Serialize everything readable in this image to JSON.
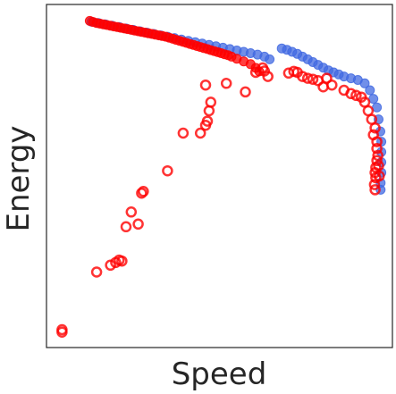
{
  "chart_data": {
    "type": "scatter",
    "xlabel": "Speed",
    "ylabel": "Energy",
    "xlim": [
      0,
      100
    ],
    "ylim": [
      0,
      100
    ],
    "grid": false,
    "ticks": false,
    "series": [
      {
        "color": "#4169E1",
        "marker": "filled-circle",
        "points": [
          [
            13.0,
            95.0
          ],
          [
            15.0,
            94.6
          ],
          [
            17.0,
            94.2
          ],
          [
            19.0,
            93.8
          ],
          [
            21.0,
            93.4
          ],
          [
            23.0,
            93.0
          ],
          [
            25.0,
            92.6
          ],
          [
            27.0,
            92.2
          ],
          [
            29.0,
            91.8
          ],
          [
            31.0,
            91.4
          ],
          [
            33.0,
            91.0
          ],
          [
            35.0,
            90.6
          ],
          [
            37.0,
            90.2
          ],
          [
            39.0,
            89.8
          ],
          [
            41.0,
            89.4
          ],
          [
            43.0,
            89.0
          ],
          [
            45.0,
            88.6
          ],
          [
            47.0,
            88.2
          ],
          [
            49.0,
            87.8
          ],
          [
            51.0,
            87.4
          ],
          [
            53.0,
            87.0
          ],
          [
            55.0,
            86.6
          ],
          [
            57.0,
            86.2
          ],
          [
            59.0,
            85.8
          ],
          [
            61.0,
            85.4
          ],
          [
            63.0,
            84.8
          ],
          [
            64.5,
            84.0
          ],
          [
            68.0,
            87.2
          ],
          [
            69.5,
            86.8
          ],
          [
            71.0,
            86.2
          ],
          [
            72.5,
            85.6
          ],
          [
            74.0,
            84.8
          ],
          [
            75.5,
            84.0
          ],
          [
            77.0,
            83.2
          ],
          [
            78.5,
            82.4
          ],
          [
            80.0,
            81.6
          ],
          [
            81.5,
            80.8
          ],
          [
            83.0,
            80.2
          ],
          [
            84.5,
            79.6
          ],
          [
            86.0,
            79.0
          ],
          [
            88.0,
            78.5
          ],
          [
            90.0,
            78.0
          ],
          [
            92.0,
            77.0
          ],
          [
            93.5,
            75.0
          ],
          [
            94.5,
            72.5
          ],
          [
            95.5,
            70.0
          ],
          [
            96.0,
            66.5
          ],
          [
            96.5,
            63.0
          ],
          [
            96.8,
            60.0
          ],
          [
            96.8,
            57.0
          ],
          [
            96.8,
            54.0
          ],
          [
            96.8,
            51.0
          ],
          [
            96.6,
            48.0
          ],
          [
            96.6,
            46.0
          ]
        ]
      },
      {
        "color": "#FF0000",
        "marker": "filled-circle",
        "points": [
          [
            12.5,
            95.2
          ],
          [
            13.5,
            94.9
          ],
          [
            14.5,
            94.6
          ],
          [
            15.5,
            94.4
          ],
          [
            16.5,
            94.2
          ],
          [
            17.5,
            94.0
          ],
          [
            18.5,
            93.8
          ],
          [
            19.5,
            93.6
          ],
          [
            20.5,
            93.4
          ],
          [
            21.5,
            93.2
          ],
          [
            22.5,
            93.0
          ],
          [
            23.5,
            92.8
          ],
          [
            24.5,
            92.6
          ],
          [
            25.5,
            92.4
          ],
          [
            26.5,
            92.2
          ],
          [
            27.5,
            92.0
          ],
          [
            28.5,
            91.8
          ],
          [
            29.5,
            91.6
          ],
          [
            30.5,
            91.4
          ],
          [
            31.5,
            91.2
          ],
          [
            32.5,
            91.0
          ],
          [
            33.5,
            90.8
          ],
          [
            34.5,
            90.6
          ],
          [
            35.5,
            90.3
          ],
          [
            36.5,
            90.0
          ],
          [
            37.5,
            89.7
          ],
          [
            38.5,
            89.4
          ],
          [
            39.5,
            89.1
          ],
          [
            40.5,
            88.8
          ],
          [
            41.5,
            88.5
          ],
          [
            42.5,
            88.2
          ],
          [
            43.5,
            87.9
          ],
          [
            44.5,
            87.6
          ],
          [
            45.5,
            87.3
          ],
          [
            46.5,
            87.0
          ],
          [
            47.5,
            86.7
          ],
          [
            48.5,
            86.4
          ],
          [
            49.5,
            86.1
          ],
          [
            50.5,
            85.8
          ],
          [
            51.5,
            85.5
          ],
          [
            52.5,
            85.2
          ],
          [
            53.5,
            84.8
          ],
          [
            55.0,
            84.2
          ],
          [
            57.0,
            83.4
          ],
          [
            59.0,
            82.6
          ],
          [
            60.5,
            81.5
          ],
          [
            61.5,
            80.5
          ]
        ]
      },
      {
        "color": "#FF0000",
        "marker": "hollow-circle",
        "points": [
          [
            4.5,
            4.5
          ],
          [
            4.5,
            5.2
          ],
          [
            14.5,
            22.0
          ],
          [
            18.5,
            24.0
          ],
          [
            20.0,
            24.8
          ],
          [
            21.0,
            25.5
          ],
          [
            21.8,
            25.2
          ],
          [
            23.0,
            35.2
          ],
          [
            24.5,
            39.5
          ],
          [
            26.5,
            36.0
          ],
          [
            27.5,
            45.0
          ],
          [
            28.0,
            45.5
          ],
          [
            35.0,
            51.5
          ],
          [
            39.5,
            62.5
          ],
          [
            44.5,
            62.5
          ],
          [
            46.0,
            64.8
          ],
          [
            46.5,
            66.0
          ],
          [
            47.0,
            69.0
          ],
          [
            47.5,
            71.5
          ],
          [
            46.0,
            76.5
          ],
          [
            52.0,
            77.0
          ],
          [
            57.5,
            74.5
          ],
          [
            60.5,
            80.2
          ],
          [
            62.5,
            81.5
          ],
          [
            64.0,
            79.0
          ],
          [
            63.0,
            80.6
          ],
          [
            70.0,
            80.0
          ],
          [
            71.5,
            80.5
          ],
          [
            72.5,
            80.2
          ],
          [
            74.0,
            79.0
          ],
          [
            75.5,
            78.5
          ],
          [
            77.0,
            78.2
          ],
          [
            78.5,
            77.8
          ],
          [
            80.0,
            76.0
          ],
          [
            81.0,
            78.5
          ],
          [
            82.5,
            76.5
          ],
          [
            86.0,
            75.0
          ],
          [
            88.0,
            74.0
          ],
          [
            89.5,
            73.5
          ],
          [
            91.0,
            73.0
          ],
          [
            92.0,
            71.5
          ],
          [
            93.0,
            69.0
          ],
          [
            94.0,
            66.5
          ],
          [
            95.0,
            64.0
          ],
          [
            94.5,
            62.0
          ],
          [
            95.5,
            60.0
          ],
          [
            95.5,
            58.0
          ],
          [
            95.8,
            56.0
          ],
          [
            95.5,
            54.5
          ],
          [
            95.2,
            52.5
          ],
          [
            95.0,
            51.0
          ],
          [
            95.2,
            49.5
          ],
          [
            94.8,
            47.5
          ],
          [
            95.0,
            46.0
          ],
          [
            96.0,
            53.0
          ],
          [
            96.2,
            50.0
          ]
        ]
      }
    ]
  }
}
